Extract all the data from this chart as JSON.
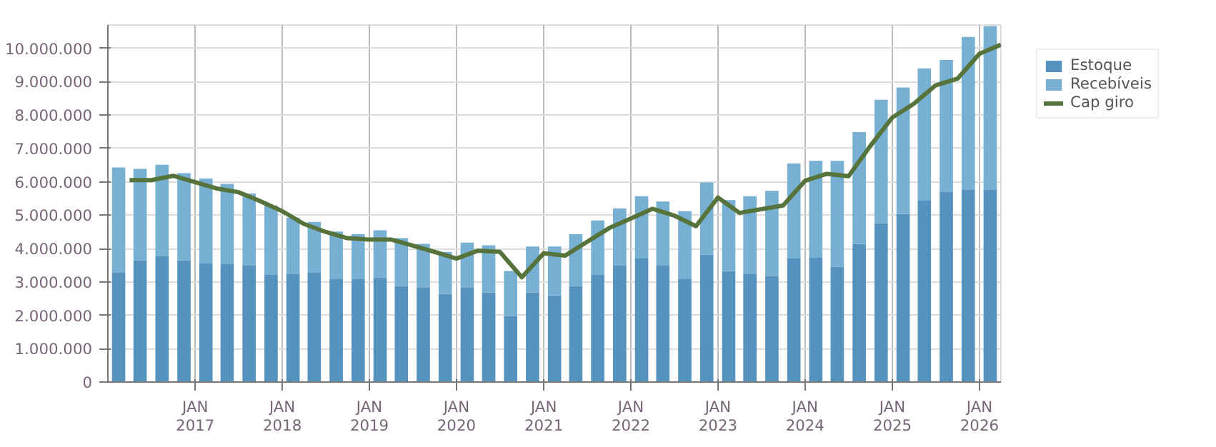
{
  "chart_data": {
    "type": "bar",
    "stacked": true,
    "x": [
      "2016-02-15",
      "2016-05-15",
      "2016-08-15",
      "2016-11-15",
      "2017-02-15",
      "2017-05-15",
      "2017-08-15",
      "2017-11-15",
      "2018-02-15",
      "2018-05-15",
      "2018-08-15",
      "2018-11-15",
      "2019-02-15",
      "2019-05-15",
      "2019-08-15",
      "2019-11-15",
      "2020-02-15",
      "2020-05-15",
      "2020-08-15",
      "2020-11-15",
      "2021-02-15",
      "2021-05-15",
      "2021-08-15",
      "2021-11-15",
      "2022-02-15",
      "2022-05-15",
      "2022-08-15",
      "2022-11-15",
      "2023-02-15",
      "2023-05-15",
      "2023-08-15",
      "2023-11-15",
      "2024-02-15",
      "2024-05-15",
      "2024-08-15",
      "2024-11-15",
      "2025-02-15",
      "2025-05-15",
      "2025-08-15",
      "2025-11-15",
      "2026-02-15"
    ],
    "series": [
      {
        "name": "Estoque",
        "color": "#5592be",
        "values": [
          3290000,
          3650000,
          3780000,
          3650000,
          3570000,
          3530000,
          3490000,
          3210000,
          3250000,
          3290000,
          3080000,
          3080000,
          3130000,
          2880000,
          2840000,
          2640000,
          2840000,
          2680000,
          1980000,
          2680000,
          2600000,
          2880000,
          3210000,
          3490000,
          3700000,
          3490000,
          3080000,
          3820000,
          3330000,
          3250000,
          3170000,
          3700000,
          3740000,
          3450000,
          4140000,
          4760000,
          5040000,
          5450000,
          5690000,
          5770000,
          5770000
        ]
      },
      {
        "name": "Recebíveis",
        "color": "#77b0d2",
        "values": [
          3140000,
          2740000,
          2730000,
          2610000,
          2530000,
          2410000,
          2160000,
          2080000,
          1680000,
          1510000,
          1430000,
          1350000,
          1420000,
          1430000,
          1300000,
          1260000,
          1340000,
          1420000,
          1350000,
          1380000,
          1460000,
          1550000,
          1630000,
          1710000,
          1870000,
          1920000,
          2040000,
          2160000,
          2120000,
          2320000,
          2560000,
          2850000,
          2890000,
          3180000,
          3350000,
          3700000,
          3790000,
          3950000,
          3960000,
          4570000,
          4900000
        ]
      },
      {
        "name": "Cap giro",
        "type": "line",
        "color": "#55733a",
        "x": [
          "2016-04-01",
          "2016-07-01",
          "2016-10-01",
          "2017-01-01",
          "2017-04-01",
          "2017-07-01",
          "2017-10-01",
          "2018-01-01",
          "2018-04-01",
          "2018-07-01",
          "2018-10-01",
          "2019-01-01",
          "2019-04-01",
          "2019-07-01",
          "2019-10-01",
          "2020-01-01",
          "2020-04-01",
          "2020-07-01",
          "2020-10-01",
          "2021-01-01",
          "2021-04-01",
          "2021-07-01",
          "2021-10-01",
          "2022-01-01",
          "2022-04-01",
          "2022-07-01",
          "2022-10-01",
          "2023-01-01",
          "2023-04-01",
          "2023-07-01",
          "2023-10-01",
          "2024-01-01",
          "2024-04-01",
          "2024-07-01",
          "2024-10-01",
          "2025-01-01",
          "2025-04-01",
          "2025-07-01",
          "2025-10-01",
          "2026-01-01",
          "2026-04-01"
        ],
        "values": [
          6050000,
          6050000,
          6180000,
          5990000,
          5800000,
          5690000,
          5420000,
          5120000,
          4740000,
          4500000,
          4310000,
          4270000,
          4270000,
          4090000,
          3900000,
          3700000,
          3940000,
          3900000,
          3140000,
          3860000,
          3790000,
          4200000,
          4610000,
          4900000,
          5190000,
          4990000,
          4670000,
          5530000,
          5070000,
          5180000,
          5290000,
          6030000,
          6240000,
          6170000,
          7080000,
          7930000,
          8340000,
          8890000,
          9090000,
          9840000,
          10110000
        ]
      }
    ],
    "xlim": [
      "2016-01-01",
      "2026-04-01"
    ],
    "xticks": [
      {
        "value": "2017-01-01",
        "label": "JAN\n2017"
      },
      {
        "value": "2018-01-01",
        "label": "JAN\n2018"
      },
      {
        "value": "2019-01-01",
        "label": "JAN\n2019"
      },
      {
        "value": "2020-01-01",
        "label": "JAN\n2020"
      },
      {
        "value": "2021-01-01",
        "label": "JAN\n2021"
      },
      {
        "value": "2022-01-01",
        "label": "JAN\n2022"
      },
      {
        "value": "2023-01-01",
        "label": "JAN\n2023"
      },
      {
        "value": "2024-01-01",
        "label": "JAN\n2024"
      },
      {
        "value": "2025-01-01",
        "label": "JAN\n2025"
      },
      {
        "value": "2026-01-01",
        "label": "JAN\n2026"
      }
    ],
    "ylim": [
      0,
      10700000
    ],
    "yticks": [
      0,
      {
        "value": 1000000,
        "label": "1.000.000"
      },
      {
        "value": 2000000,
        "label": "2.000.000"
      },
      {
        "value": 3000000,
        "label": "3.000.000"
      },
      {
        "value": 4000000,
        "label": "4.000.000"
      },
      {
        "value": 5000000,
        "label": "5.000.000"
      },
      {
        "value": 6000000,
        "label": "6.000.000"
      },
      {
        "value": 7000000,
        "label": "7.000.000"
      },
      {
        "value": 8000000,
        "label": "8.000.000"
      },
      {
        "value": 9000000,
        "label": "9.000.000"
      },
      {
        "value": 10000000,
        "label": "10.000.000"
      }
    ],
    "grid": true,
    "legend": "top right"
  }
}
